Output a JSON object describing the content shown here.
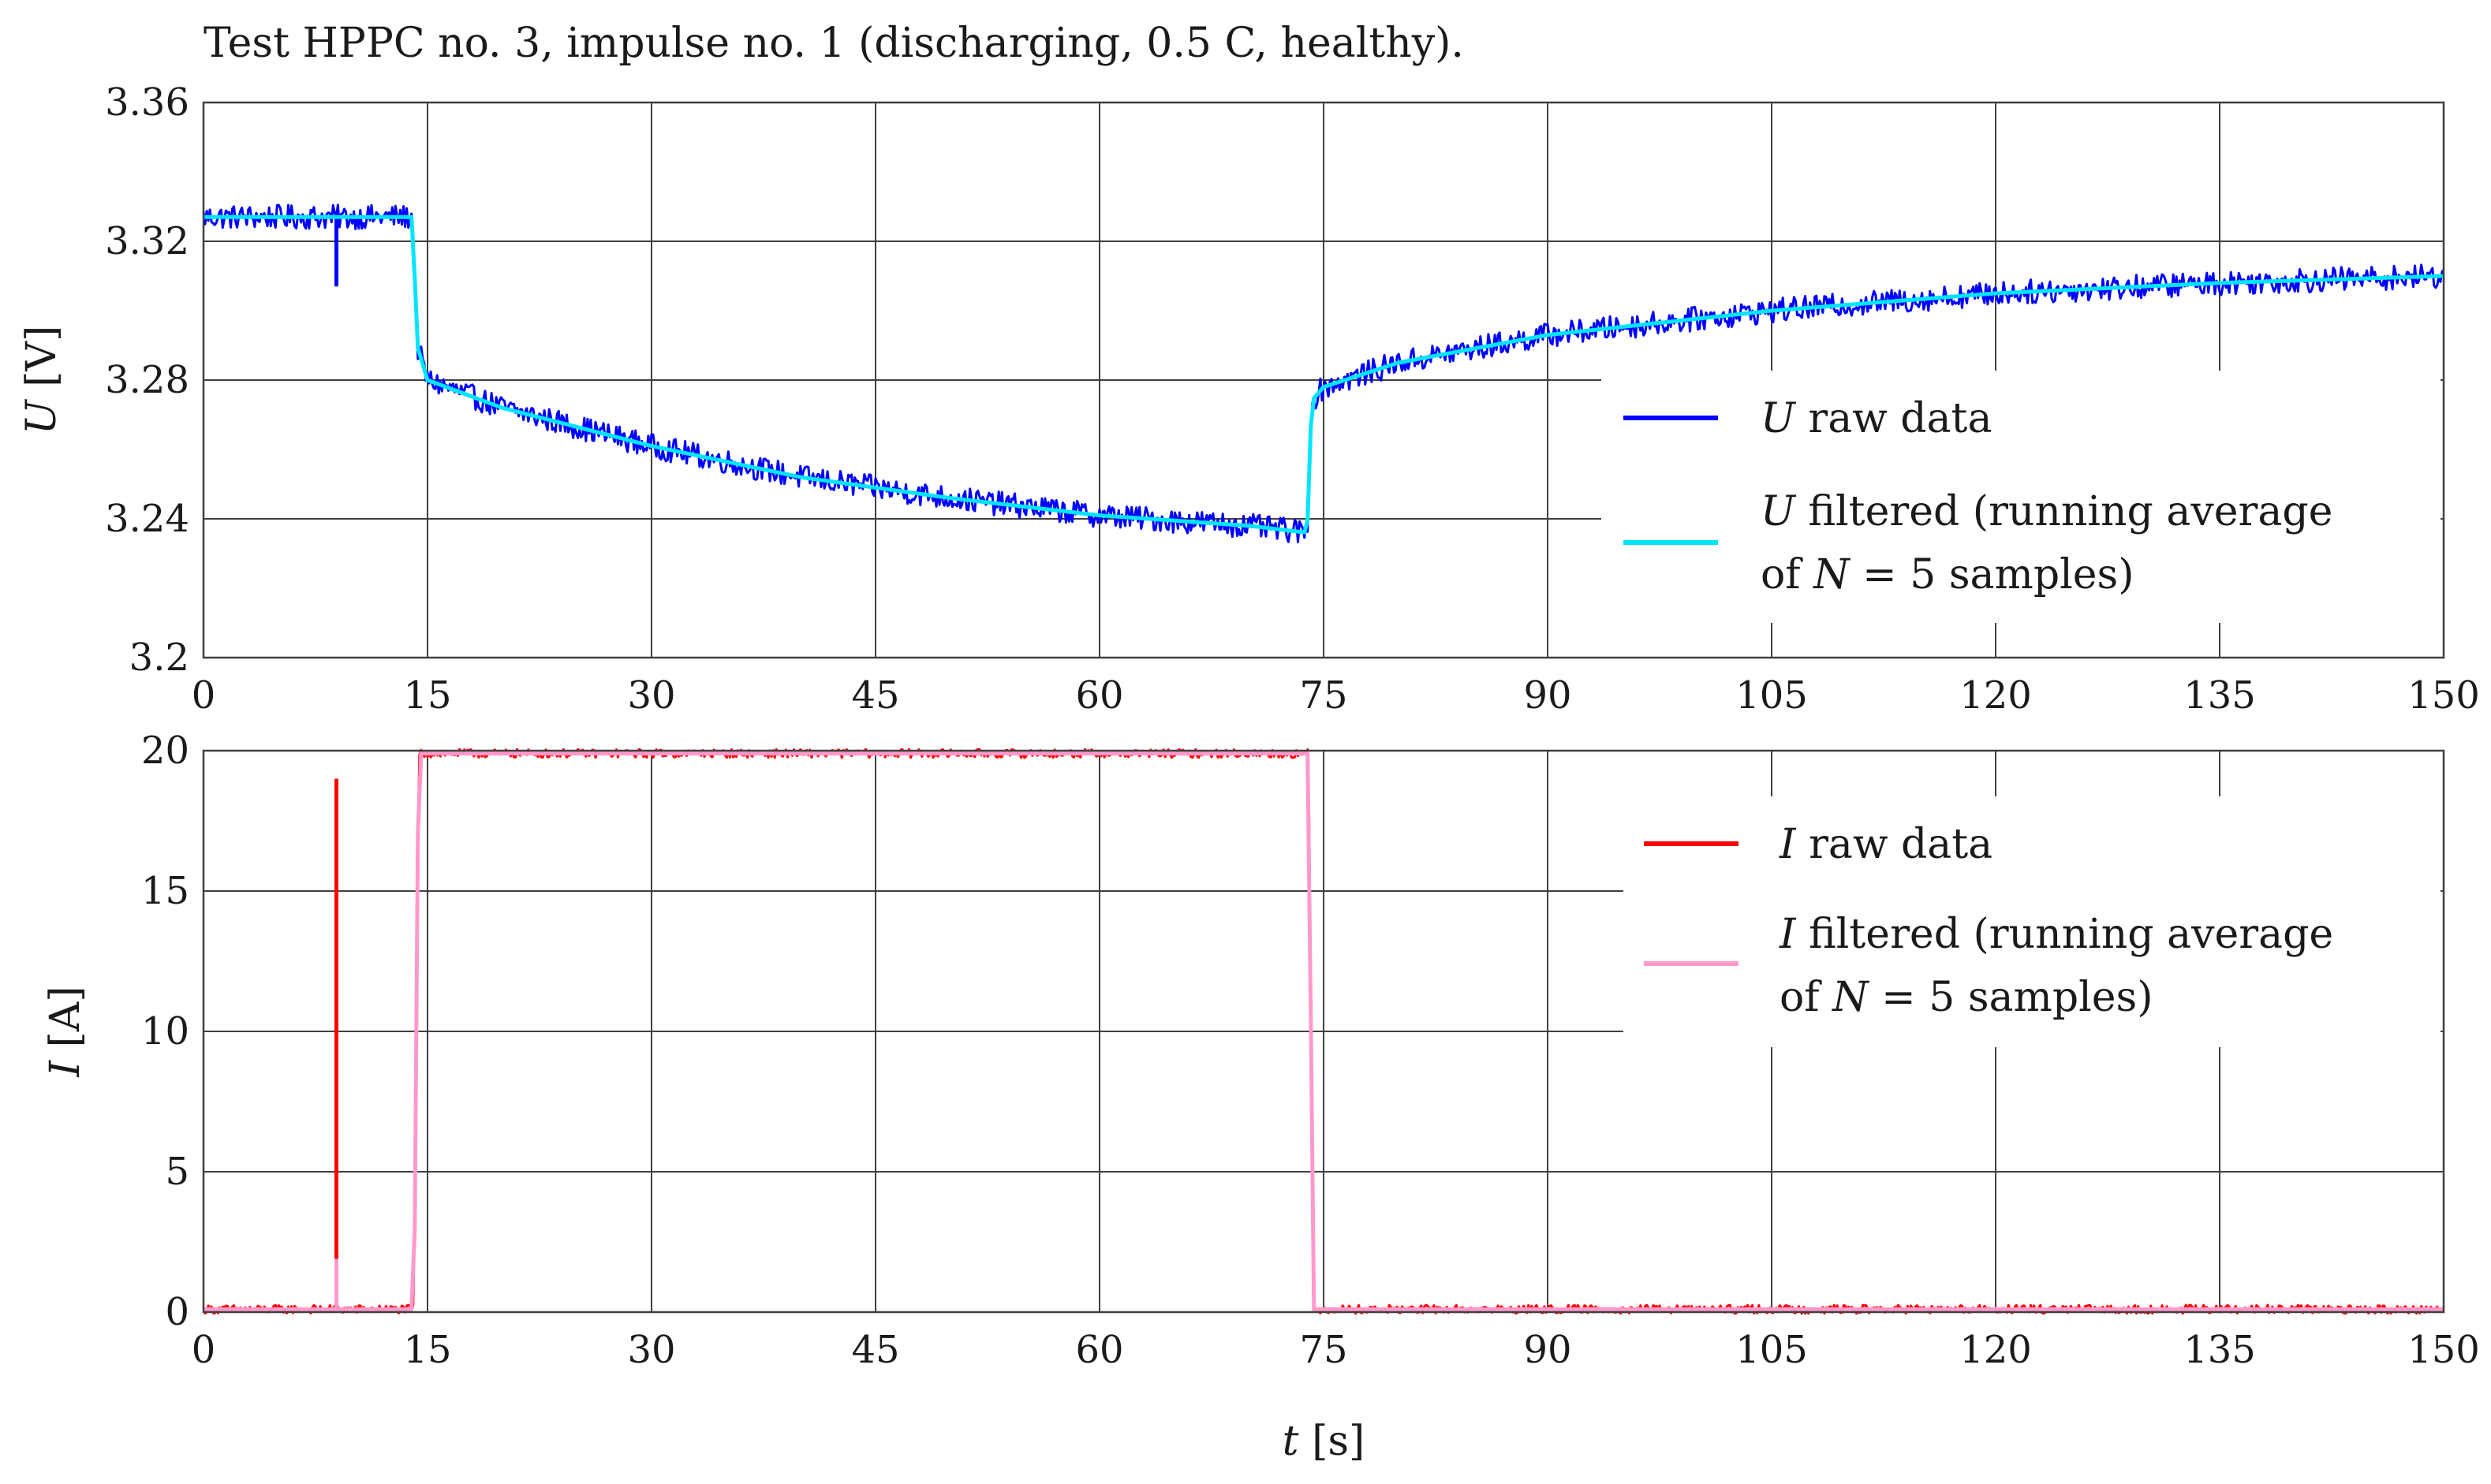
{
  "chart_data": [
    {
      "type": "line",
      "id": "voltage",
      "title": "Test HPPC no. 3, impulse no. 1 (discharging, 0.5 C, healthy).",
      "xlabel": "",
      "ylabel_symbol": "U",
      "ylabel_unit": "[V]",
      "xlim": [
        0,
        150
      ],
      "ylim": [
        3.2,
        3.36
      ],
      "xticks": [
        0,
        15,
        30,
        45,
        60,
        75,
        90,
        105,
        120,
        135,
        150
      ],
      "yticks": [
        3.2,
        3.24,
        3.28,
        3.32,
        3.36
      ],
      "ytick_labels": [
        "3.2",
        "3.24",
        "3.28",
        "3.32",
        "3.36"
      ],
      "grid": true,
      "legend_position": "right",
      "series": [
        {
          "name": "U raw data",
          "legend_symbol": "U",
          "legend_text": "raw data",
          "color": "#0000ff",
          "noise_amplitude": 0.0035,
          "spikes": [
            {
              "x": 8.9,
              "y": 3.307
            }
          ],
          "x": [
            0,
            14.0,
            14.3,
            15,
            20,
            30,
            40,
            45,
            50,
            60,
            70,
            73.9,
            74.2,
            75,
            80,
            90,
            105,
            120,
            135,
            150
          ],
          "values": [
            3.327,
            3.327,
            3.29,
            3.28,
            3.272,
            3.261,
            3.252,
            3.249,
            3.246,
            3.241,
            3.238,
            3.236,
            3.274,
            3.278,
            3.285,
            3.293,
            3.3,
            3.305,
            3.308,
            3.31
          ]
        },
        {
          "name": "U filtered (running average of N = 5 samples)",
          "legend_symbol": "U",
          "legend_text_line1": "filtered (running average",
          "legend_text_line2_pre": "of",
          "legend_text_line2_symbol": "N",
          "legend_text_line2_post": "= 5 samples)",
          "color": "#00e5ff",
          "x": [
            0,
            14.0,
            14.3,
            15,
            20,
            30,
            40,
            45,
            50,
            60,
            70,
            73.9,
            74.2,
            75,
            80,
            90,
            105,
            120,
            135,
            150
          ],
          "values": [
            3.327,
            3.327,
            3.29,
            3.28,
            3.272,
            3.261,
            3.252,
            3.249,
            3.246,
            3.241,
            3.238,
            3.236,
            3.274,
            3.278,
            3.285,
            3.293,
            3.3,
            3.305,
            3.308,
            3.31
          ]
        }
      ]
    },
    {
      "type": "line",
      "id": "current",
      "title": "",
      "xlabel_symbol": "t",
      "xlabel_unit": "[s]",
      "ylabel_symbol": "I",
      "ylabel_unit": "[A]",
      "xlim": [
        0,
        150
      ],
      "ylim": [
        0,
        20
      ],
      "xticks": [
        0,
        15,
        30,
        45,
        60,
        75,
        90,
        105,
        120,
        135,
        150
      ],
      "yticks": [
        0,
        5,
        10,
        15,
        20
      ],
      "ytick_labels": [
        "0",
        "5",
        "10",
        "15",
        "20"
      ],
      "grid": true,
      "legend_position": "top-right",
      "series": [
        {
          "name": "I raw data",
          "legend_symbol": "I",
          "legend_text": "raw data",
          "color": "#ff0000",
          "noise_amplitude": 0.15,
          "spikes": [
            {
              "x": 8.9,
              "y": 19.0
            }
          ],
          "x": [
            0,
            14.1,
            14.4,
            74.0,
            74.3,
            150
          ],
          "values": [
            0.1,
            0.1,
            19.9,
            19.9,
            0.1,
            0.1
          ]
        },
        {
          "name": "I filtered (running average of N = 5 samples)",
          "legend_symbol": "I",
          "legend_text_line1": "filtered (running average",
          "legend_text_line2_pre": "of",
          "legend_text_line2_symbol": "N",
          "legend_text_line2_post": "= 5 samples)",
          "color": "#ff99cc",
          "spikes": [
            {
              "x": 8.9,
              "y": 1.9
            }
          ],
          "x": [
            0,
            14.1,
            14.4,
            74.0,
            74.3,
            150
          ],
          "values": [
            0.1,
            0.1,
            19.9,
            19.9,
            0.1,
            0.1
          ]
        }
      ]
    }
  ]
}
